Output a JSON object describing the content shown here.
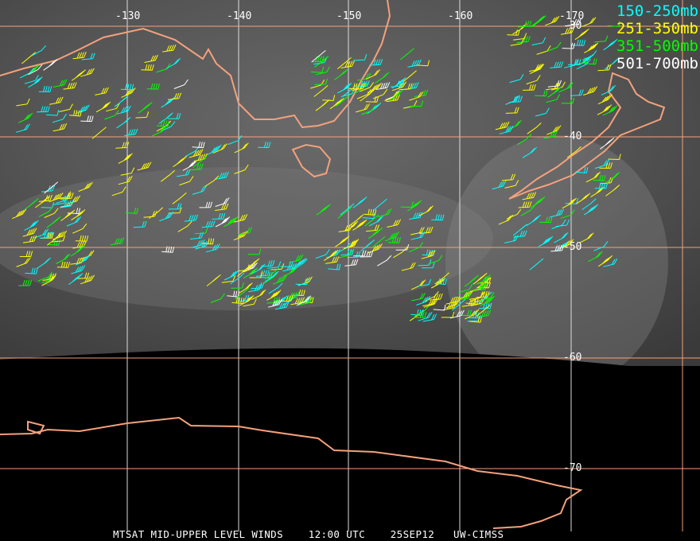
{
  "title": "MTSAT MID-UPPER LEVEL WINDS",
  "time": "12:00 UTC",
  "date": "25SEP12",
  "source": "UW-CIMSS",
  "longitude_labels": [
    "-130",
    "-140",
    "-150",
    "-160",
    "-170"
  ],
  "latitude_labels": [
    "-30",
    "-40",
    "-50",
    "-60",
    "-70"
  ],
  "legend": [
    {
      "label": "150-250mb",
      "color": "#00ffff"
    },
    {
      "label": "251-350mb",
      "color": "#ffff00"
    },
    {
      "label": "351-500mb",
      "color": "#00ff00"
    },
    {
      "label": "501-700mb",
      "color": "#ffffff"
    }
  ],
  "colors": {
    "coastline": "#f4a17c",
    "grid": "#f4a17c",
    "space": "#000000"
  }
}
